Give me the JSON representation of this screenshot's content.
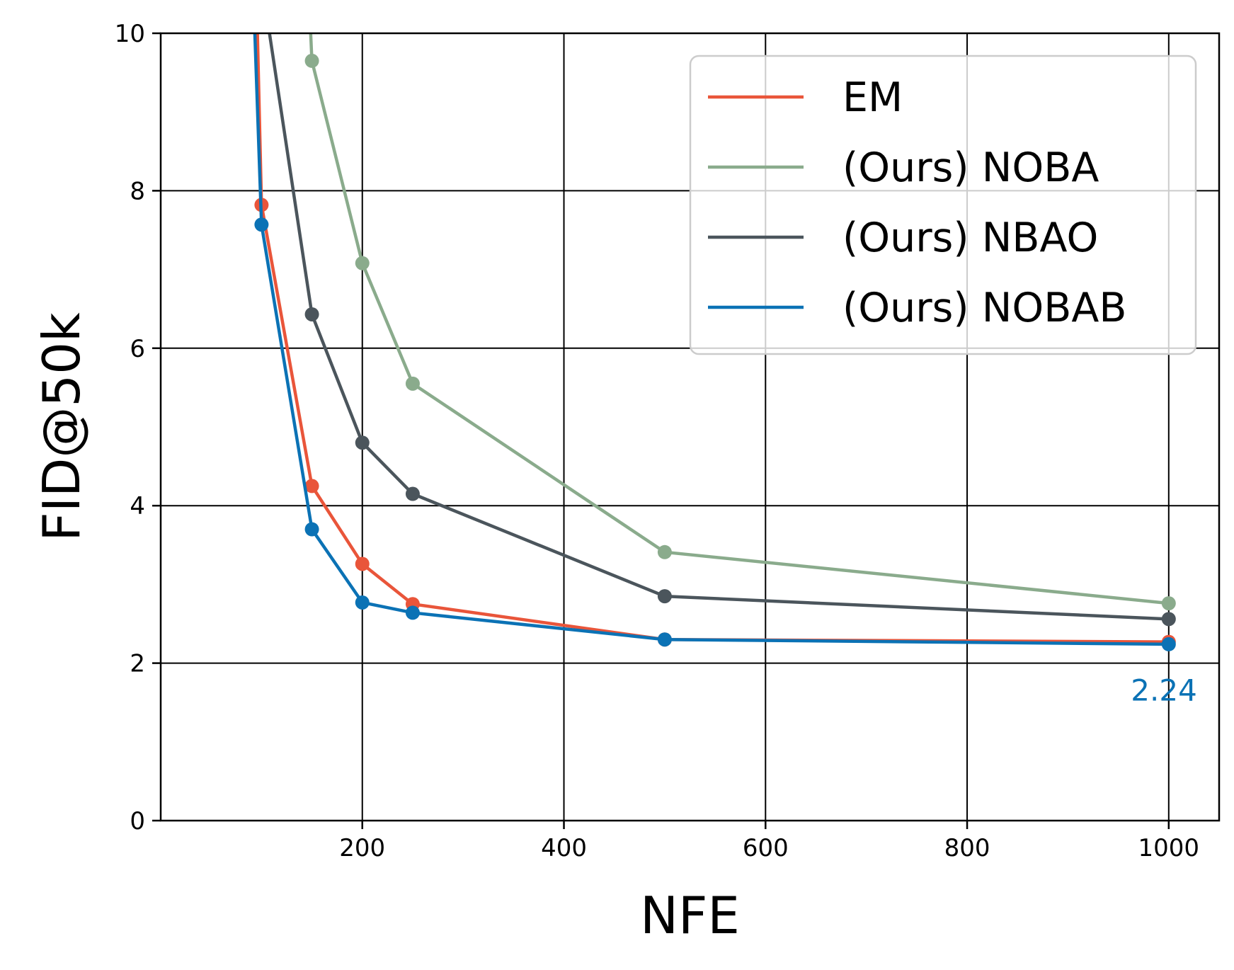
{
  "chart_data": {
    "type": "line",
    "title": "",
    "xlabel": "NFE",
    "ylabel": "FID@50k",
    "xlim": [
      0,
      1050
    ],
    "ylim": [
      0,
      10
    ],
    "x_ticks": [
      200,
      400,
      600,
      800,
      1000
    ],
    "y_ticks": [
      0,
      2,
      4,
      6,
      8,
      10
    ],
    "grid": true,
    "legend_position": "top-right",
    "series": [
      {
        "name": "EM",
        "color": "#e9553a",
        "points": [
          [
            100,
            7.82
          ],
          [
            150,
            4.25
          ],
          [
            200,
            3.26
          ],
          [
            250,
            2.75
          ],
          [
            500,
            2.3
          ],
          [
            1000,
            2.27
          ]
        ]
      },
      {
        "name": "(Ours) NOBA",
        "color": "#8aab8c",
        "points": [
          [
            150,
            9.65
          ],
          [
            200,
            7.08
          ],
          [
            250,
            5.55
          ],
          [
            500,
            3.41
          ],
          [
            1000,
            2.76
          ]
        ]
      },
      {
        "name": "(Ours) NBAO",
        "color": "#4b555c",
        "points": [
          [
            150,
            6.43
          ],
          [
            200,
            4.8
          ],
          [
            250,
            4.15
          ],
          [
            500,
            2.85
          ],
          [
            1000,
            2.56
          ]
        ]
      },
      {
        "name": "(Ours) NOBAB",
        "color": "#0b72b5",
        "points": [
          [
            100,
            7.57
          ],
          [
            150,
            3.7
          ],
          [
            200,
            2.77
          ],
          [
            250,
            2.64
          ],
          [
            500,
            2.3
          ],
          [
            1000,
            2.24
          ]
        ]
      }
    ],
    "off_chart_lead_in": [
      {
        "series": "EM",
        "from": [
          95,
          10.5
        ]
      },
      {
        "series": "(Ours) NOBA",
        "from": [
          147,
          10.5
        ]
      },
      {
        "series": "(Ours) NBAO",
        "from": [
          102,
          10.5
        ]
      },
      {
        "series": "(Ours) NOBAB",
        "from": [
          92,
          10.5
        ]
      }
    ],
    "annotations": [
      {
        "text": "2.24",
        "x": 1000,
        "y": 1.65,
        "color": "#0b72b5"
      }
    ]
  }
}
